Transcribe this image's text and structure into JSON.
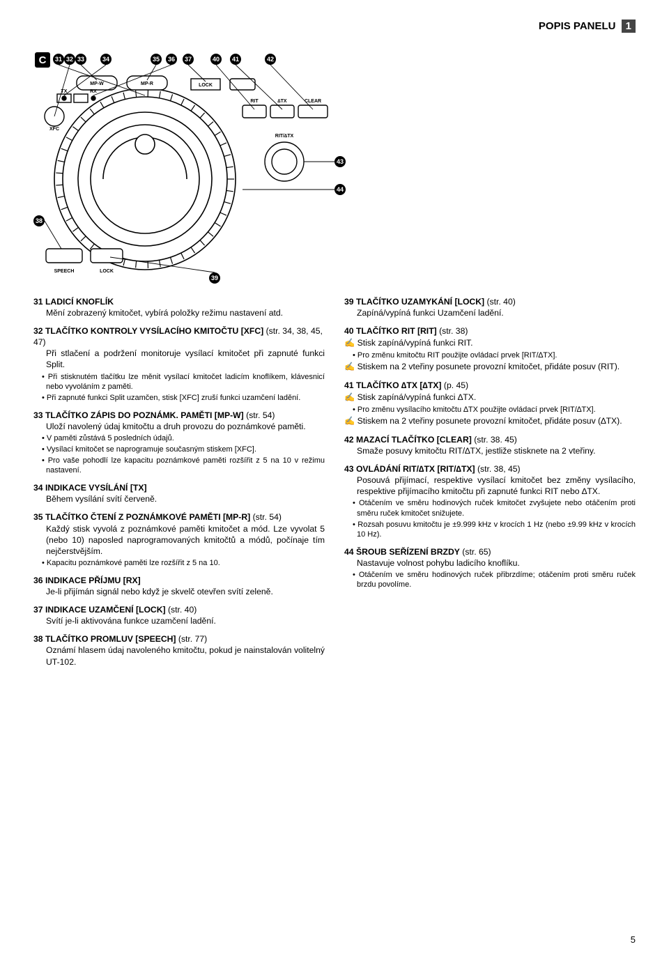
{
  "header": {
    "title": "POPIS PANELU",
    "chapterNum": "1"
  },
  "diagram": {
    "topCallouts": [
      "31",
      "32",
      "33",
      "34",
      "35",
      "36",
      "37",
      "40",
      "41",
      "42"
    ],
    "rightCallouts": [
      "43",
      "44"
    ],
    "leftCallout": "38",
    "bottomCallout": "39",
    "topLabels": [
      "MP-W",
      "MP-R"
    ],
    "txLabel": "TX",
    "rxLabel": "RX",
    "xfcLabel": "XFC",
    "ritLabel": "RIT",
    "dtxLabel": "∆TX",
    "clearLabel": "CLEAR",
    "ritDtxLabel": "RIT/∆TX",
    "speechLabel": "SPEECH",
    "lockLabel": "LOCK",
    "lockLabel2": "LOCK"
  },
  "left": [
    {
      "title": "31 LADICÍ KNOFLÍK",
      "body": "Mění zobrazený kmitočet, vybírá položky režimu nastavení atd."
    },
    {
      "title": "32 TLAČÍTKO KONTROLY VYSÍLACÍHO KMITOČTU [XFC]",
      "ref": "(str. 34, 38, 45, 47)",
      "body": "Při stlačení a podržení monitoruje vysílací kmitočet při zapnuté funkci Split.",
      "bullets": [
        "Při stisknutém tlačítku lze měnit vysílací kmitočet ladicím knoflíkem, klávesnicí nebo vyvoláním z paměti.",
        "Při zapnuté funkci Split uzamčen, stisk [XFC] zruší funkci uzamčení ladění."
      ]
    },
    {
      "title": "33 TLAČÍTKO ZÁPIS DO POZNÁMK. PAMĚTI   [MP-W]",
      "ref": "(str. 54)",
      "body": "Uloží navolený údaj kmitočtu a druh provozu do poznámkové paměti.",
      "bullets": [
        "V paměti zůstává 5 posledních údajů.",
        "Vysílací kmitočet se naprogramuje současným stiskem [XFC].",
        "Pro vaše pohodlí lze kapacitu poznámkové paměti rozšířit z 5 na 10 v režimu nastavení."
      ]
    },
    {
      "title": "34 INDIKACE VYSÍLÁNÍ [TX]",
      "body": "Během vysílání svítí červeně."
    },
    {
      "title": "35 TLAČÍTKO ČTENÍ Z POZNÁMKOVÉ PAMĚTI [MP-R]",
      "ref": "(str. 54)",
      "body": "Každý stisk vyvolá z poznámkové paměti kmitočet a mód. Lze vyvolat 5 (nebo 10) naposled naprogramovaných kmitočtů a módů, počínaje tím nejčerstvějším.",
      "bullets": [
        "Kapacitu poznámkové paměti lze rozšířit z 5 na 10."
      ]
    },
    {
      "title": "36 INDIKACE PŘÍJMU [RX]",
      "body": "Je-li přijímán signál nebo když je skvelč otevřen svítí zeleně."
    },
    {
      "title": "37 INDIKACE UZAMČENÍ [LOCK]",
      "ref": "(str. 40)",
      "body": "Svítí je-li aktivována funkce uzamčení ladění."
    },
    {
      "title": "38 TLAČÍTKO PROMLUV [SPEECH]",
      "ref": "(str. 77)",
      "body": "Oznámí hlasem údaj navoleného kmitočtu, pokud je nainstalován volitelný UT-102."
    }
  ],
  "right": [
    {
      "title": "39 TLAČÍTKO UZAMYKÁNÍ [LOCK]",
      "ref": "(str. 40)",
      "body": "Zapíná/vypíná funkci Uzamčení ladění."
    },
    {
      "title": "40 TLAČÍTKO RIT [RIT]",
      "ref": "(str. 38)",
      "hands": [
        "Stisk zapíná/vypíná funkci RIT."
      ],
      "bullets": [
        "Pro změnu kmitočtu RIT použijte ovládací prvek [RIT/∆TX]."
      ],
      "hands2": [
        "Stiskem na 2 vteřiny posunete provozní kmitočet, přidáte posuv (RIT)."
      ]
    },
    {
      "title": "41 TLAČÍTKO ∆TX [∆TX]",
      "ref": "(p. 45)",
      "hands": [
        "Stisk zapíná/vypíná funkci ∆TX."
      ],
      "bullets": [
        "Pro změnu vysílacího kmitočtu ∆TX použijte ovládací prvek [RIT/∆TX]."
      ],
      "hands2": [
        "Stiskem na 2 vteřiny posunete provozní kmitočet, přidáte posuv (∆TX)."
      ]
    },
    {
      "title": "42 MAZACÍ TLAČÍTKO [CLEAR]",
      "ref": "(str. 38. 45)",
      "body": "Smaže posuvy kmitočtu RIT/∆TX, jestliže stisknete na 2 vteřiny."
    },
    {
      "title": "43 OVLÁDÁNÍ RIT/∆TX [RIT/∆TX]",
      "ref": "(str. 38, 45)",
      "body": "Posouvá přijímací, respektive vysílací kmitočet bez změny vysílacího, respektive přijímacího kmitočtu při zapnuté funkci RIT nebo ∆TX.",
      "bullets": [
        "Otáčením ve směru hodinových ruček kmitočet zvyšujete nebo otáčením proti směru ruček kmitočet snižujete.",
        "Rozsah posuvu kmitočtu je ±9.999 kHz v krocích 1 Hz (nebo ±9.99 kHz v krocích 10 Hz)."
      ]
    },
    {
      "title": "44 ŠROUB SEŘÍZENÍ BRZDY",
      "ref": "(str. 65)",
      "body": "Nastavuje volnost pohybu ladicího knoflíku.",
      "bullets": [
        "Otáčením ve směru hodinových ruček přibrzdíme; otáčením proti směru ruček brzdu povolíme."
      ]
    }
  ],
  "pageNumber": "5"
}
